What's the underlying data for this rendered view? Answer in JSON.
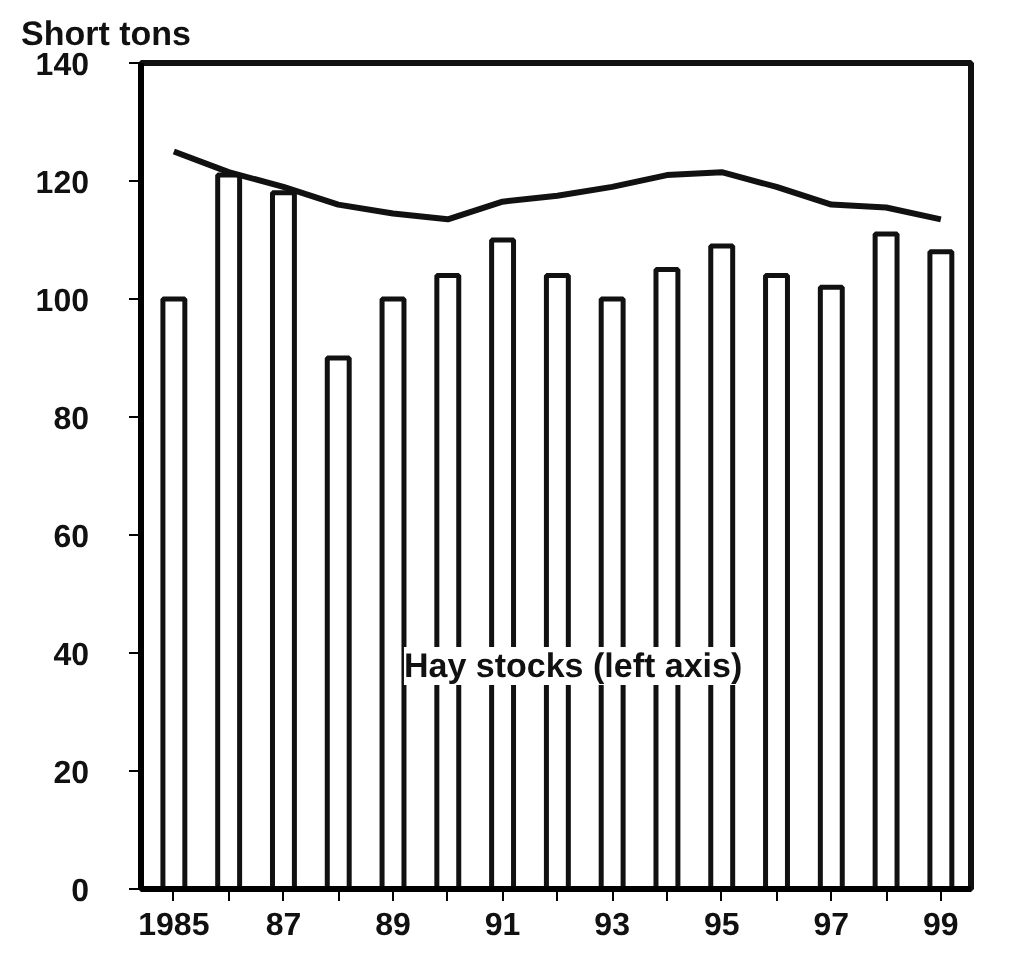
{
  "chart_data": {
    "type": "bar",
    "ylabel": "Short tons",
    "categories": [
      "1985",
      null,
      "87",
      null,
      "89",
      null,
      "91",
      null,
      "93",
      null,
      "95",
      null,
      "97",
      null,
      "99"
    ],
    "series": [
      {
        "color": "#ffffff",
        "values": [
          100,
          121,
          118,
          90,
          100,
          104,
          110,
          104,
          100,
          105,
          109,
          104,
          102,
          111,
          108
        ]
      },
      {
        "type": "line",
        "color": "#111111",
        "values": [
          125,
          121.5,
          119,
          116,
          114.5,
          113.5,
          116.5,
          117.5,
          119,
          121,
          121.5,
          119,
          116,
          115.5,
          113.5
        ]
      }
    ],
    "ylim": [
      0,
      140
    ],
    "yticks": [
      0,
      20,
      40,
      60,
      80,
      100,
      120,
      140
    ],
    "grid": false,
    "annotations": [
      "Hay stocks (left axis)"
    ]
  }
}
